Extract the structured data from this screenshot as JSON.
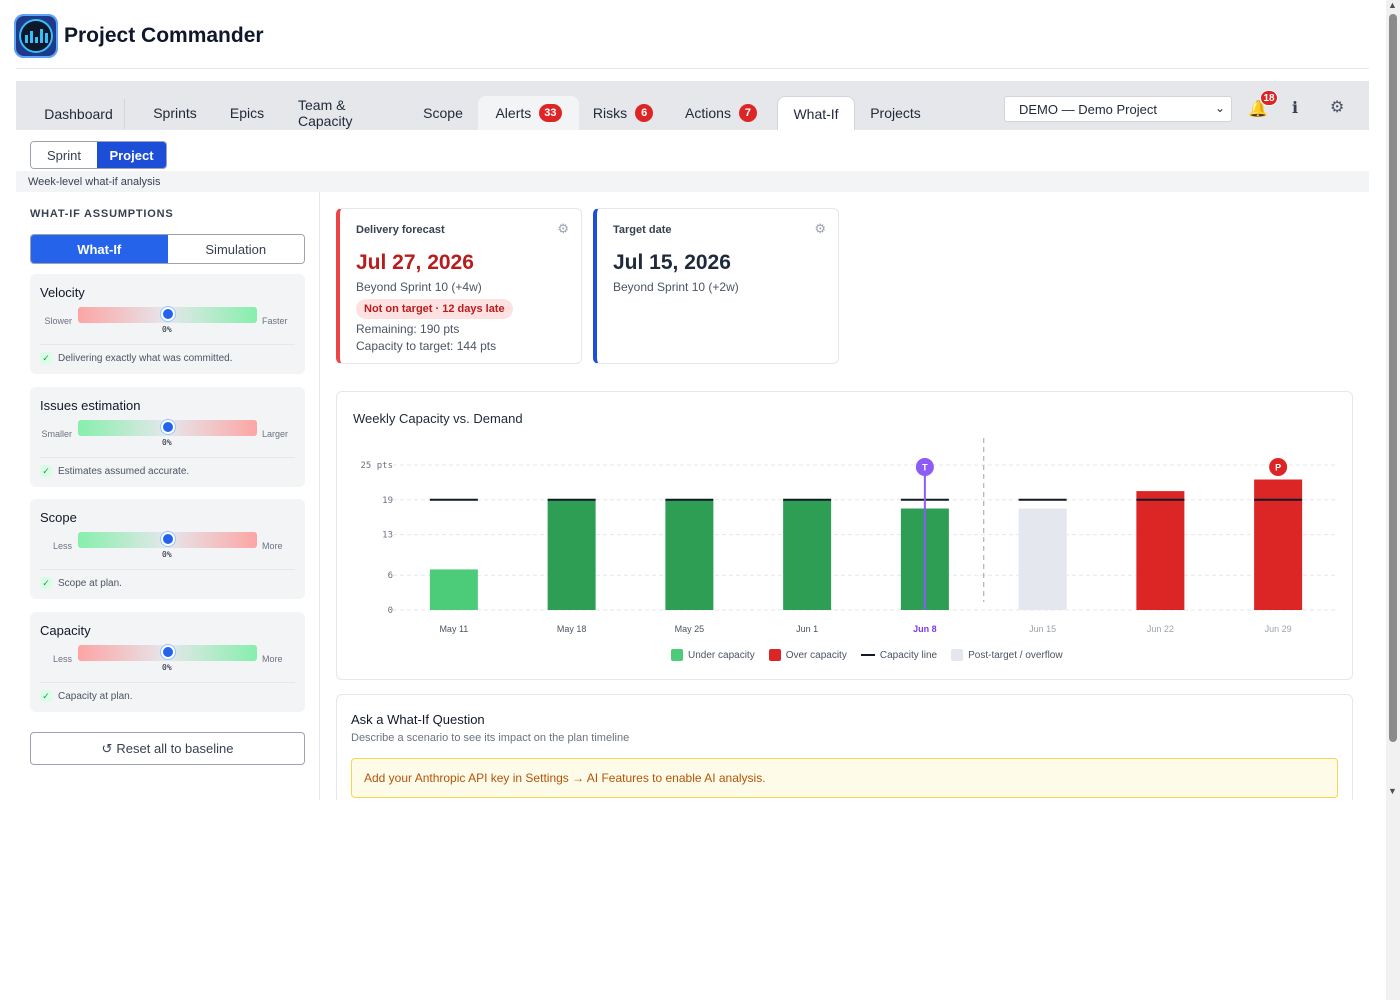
{
  "app": {
    "title": "Project Commander"
  },
  "nav": {
    "tabs": [
      {
        "label": "Dashboard"
      },
      {
        "label": "Sprints"
      },
      {
        "label": "Epics"
      },
      {
        "label": "Team & Capacity"
      },
      {
        "label": "Scope"
      },
      {
        "label": "Alerts",
        "badge": "33"
      },
      {
        "label": "Risks",
        "badge": "6"
      },
      {
        "label": "Actions",
        "badge": "7"
      },
      {
        "label": "What-If"
      },
      {
        "label": "Projects"
      }
    ],
    "project_select": "DEMO — Demo Project",
    "notifications_count": "18",
    "info_glyph": "i"
  },
  "subtabs": {
    "sprint": "Sprint",
    "project": "Project",
    "selected": "Project"
  },
  "page_subtitle": "Week-level what-if analysis",
  "assumptions": {
    "title": "WHAT-IF ASSUMPTIONS",
    "mode_whatif": "What-If",
    "mode_simulation": "Simulation",
    "selected_mode": "What-If",
    "sliders": [
      {
        "name": "Velocity",
        "low": "Slower",
        "high": "Faster",
        "value": "0%",
        "note": "Delivering exactly what was committed."
      },
      {
        "name": "Issues estimation",
        "low": "Smaller",
        "high": "Larger",
        "value": "0%",
        "note": "Estimates assumed accurate."
      },
      {
        "name": "Scope",
        "low": "Less",
        "high": "More",
        "value": "0%",
        "note": "Scope at plan."
      },
      {
        "name": "Capacity",
        "low": "Less",
        "high": "More",
        "value": "0%",
        "note": "Capacity at plan."
      }
    ],
    "reset_label": "Reset all to baseline"
  },
  "kpis": {
    "delivery": {
      "label": "Delivery forecast",
      "date": "Jul 27, 2026",
      "sprint": "Beyond Sprint 10 (+4w)",
      "status": "Not on target · 12 days late",
      "remaining": "Remaining: 190 pts",
      "capacity": "Capacity to target: 144 pts",
      "accent": "#ef4444"
    },
    "target": {
      "label": "Target date",
      "date": "Jul 15, 2026",
      "sprint": "Beyond Sprint 10 (+2w)",
      "accent": "#1d4ed8"
    }
  },
  "chart": {
    "title": "Weekly Capacity vs. Demand",
    "legend": {
      "under": "Under capacity",
      "over": "Over capacity",
      "line": "Capacity line",
      "post": "Post-target / overflow"
    },
    "colors": {
      "under": "#2e9e55",
      "under_light": "#4ccb78",
      "over": "#dc2626",
      "post": "#e5e7ee",
      "marker_t": "#8b5cf6",
      "marker_p": "#dc2626"
    }
  },
  "chart_data": {
    "type": "bar",
    "title": "Weekly Capacity vs. Demand",
    "categories": [
      "May 11",
      "May 18",
      "May 25",
      "Jun 1",
      "Jun 8",
      "Jun 15",
      "Jun 22",
      "Jun 29"
    ],
    "y_ticks": [
      "0",
      "6",
      "13",
      "19",
      "25 pts"
    ],
    "ylim": [
      0,
      25
    ],
    "series": [
      {
        "name": "Demand",
        "values": [
          7,
          19,
          19,
          19,
          17.5,
          17.5,
          20.5,
          22.5
        ],
        "kind": [
          "under-light",
          "under",
          "under",
          "under",
          "under",
          "post",
          "over",
          "over"
        ]
      },
      {
        "name": "Capacity line",
        "values": [
          19,
          19,
          19,
          19,
          19,
          19,
          19,
          19
        ]
      }
    ],
    "current_week": "Jun 8",
    "markers": [
      {
        "label": "T",
        "category": "Jun 8"
      },
      {
        "label": "P",
        "category": "Jun 29"
      }
    ],
    "target_divider_after": "Jun 8"
  },
  "ask": {
    "title": "Ask a What-If Question",
    "subtitle": "Describe a scenario to see its impact on the plan timeline",
    "warning": "Add your Anthropic API key in Settings → AI Features to enable AI analysis."
  }
}
